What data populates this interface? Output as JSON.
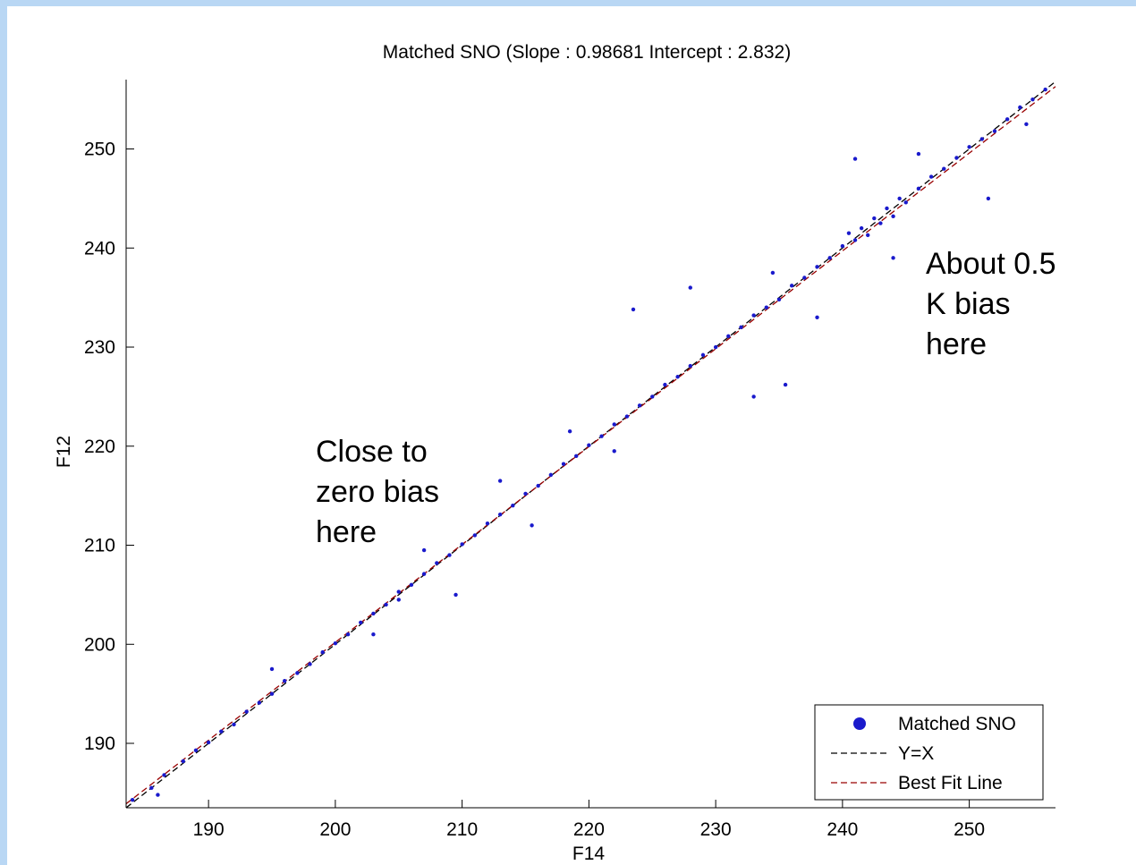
{
  "chart_data": {
    "type": "scatter",
    "title": "Matched SNO (Slope : 0.98681 Intercept : 2.832)",
    "xlabel": "F14",
    "ylabel": "F12",
    "xlim": [
      183.5,
      256.8
    ],
    "ylim": [
      183.5,
      257.0
    ],
    "xticks": [
      190,
      200,
      210,
      220,
      230,
      240,
      250
    ],
    "yticks": [
      190,
      200,
      210,
      220,
      230,
      240,
      250
    ],
    "grid": false,
    "legend_position": "bottom-right",
    "series": [
      {
        "name": "Matched SNO",
        "kind": "points",
        "color": "#1a1acc",
        "x": [
          184.0,
          185.5,
          186.5,
          188.0,
          189.0,
          190.0,
          191.0,
          192.0,
          193.0,
          194.0,
          195.0,
          196.0,
          197.0,
          198.0,
          199.0,
          200.0,
          201.0,
          202.0,
          203.0,
          204.0,
          205.0,
          206.0,
          207.0,
          208.0,
          209.0,
          210.0,
          211.0,
          212.0,
          213.0,
          214.0,
          215.0,
          216.0,
          217.0,
          218.0,
          219.0,
          220.0,
          221.0,
          222.0,
          223.0,
          224.0,
          225.0,
          226.0,
          227.0,
          228.0,
          229.0,
          230.0,
          231.0,
          232.0,
          233.0,
          234.0,
          235.0,
          236.0,
          237.0,
          238.0,
          239.0,
          240.0,
          240.5,
          241.0,
          241.5,
          242.0,
          242.5,
          243.0,
          243.5,
          244.0,
          244.5,
          245.0,
          246.0,
          247.0,
          248.0,
          249.0,
          250.0,
          251.0,
          252.0,
          253.0,
          254.0,
          255.0,
          256.0,
          186.0,
          195.0,
          203.0,
          205.0,
          207.0,
          209.5,
          213.0,
          215.5,
          218.5,
          222.0,
          223.5,
          228.0,
          233.0,
          234.5,
          235.5,
          238.0,
          241.0,
          244.0,
          246.0,
          251.5,
          254.5
        ],
        "y": [
          184.3,
          185.5,
          186.8,
          188.2,
          189.3,
          190.1,
          191.2,
          191.9,
          193.2,
          194.1,
          195.0,
          196.3,
          197.1,
          198.0,
          199.2,
          200.1,
          201.0,
          202.2,
          203.1,
          204.0,
          205.3,
          206.0,
          207.1,
          208.2,
          209.0,
          210.1,
          211.0,
          212.2,
          213.1,
          214.0,
          215.2,
          216.0,
          217.1,
          218.2,
          219.0,
          220.1,
          221.0,
          222.2,
          223.0,
          224.1,
          225.0,
          226.2,
          227.0,
          228.1,
          229.2,
          230.0,
          231.1,
          232.0,
          233.2,
          234.0,
          234.8,
          236.2,
          237.0,
          238.1,
          239.0,
          240.2,
          241.5,
          240.8,
          242.0,
          241.3,
          243.0,
          242.5,
          244.0,
          243.2,
          245.0,
          244.6,
          246.0,
          247.2,
          248.0,
          249.1,
          250.2,
          251.0,
          251.8,
          253.0,
          254.2,
          255.0,
          256.0,
          184.8,
          197.5,
          201.0,
          204.5,
          209.5,
          205.0,
          216.5,
          212.0,
          221.5,
          219.5,
          233.8,
          236.0,
          225.0,
          237.5,
          226.2,
          233.0,
          249.0,
          239.0,
          249.5,
          245.0,
          252.5
        ]
      },
      {
        "name": "Y=X",
        "kind": "line",
        "color": "#000000",
        "x": [
          183.5,
          256.8
        ],
        "y": [
          183.5,
          256.8
        ]
      },
      {
        "name": "Best Fit Line",
        "kind": "line",
        "color": "#990000",
        "x": [
          183.5,
          256.8
        ],
        "y": [
          183.9,
          256.3
        ]
      }
    ]
  },
  "annotations": [
    {
      "text": "Close to\nzero bias\nhere"
    },
    {
      "text": "About 0.5\nK bias\nhere"
    }
  ]
}
